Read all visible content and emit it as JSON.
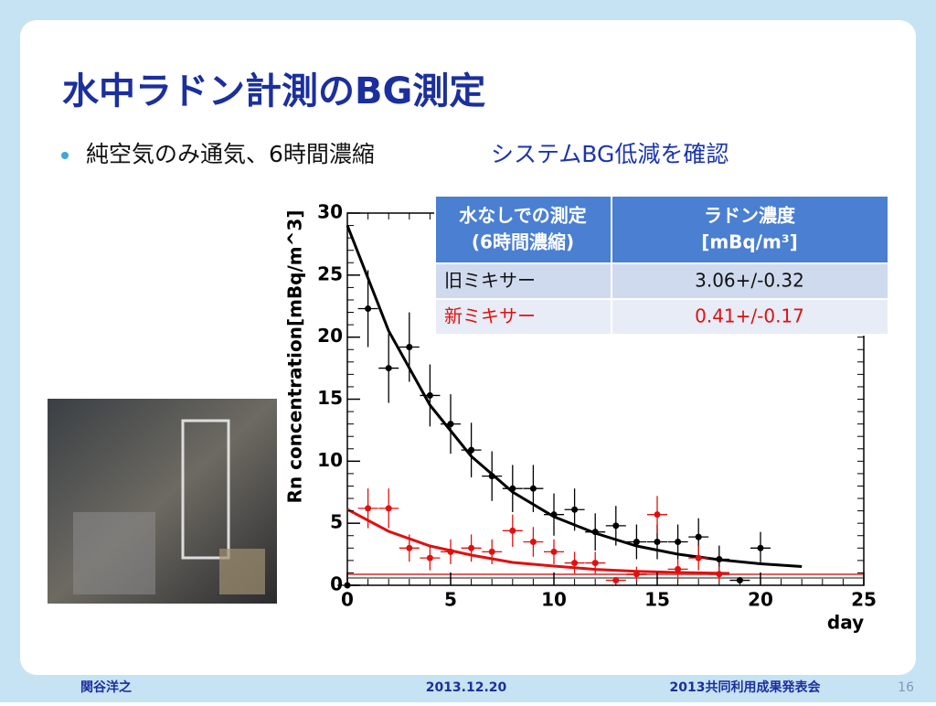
{
  "header": {
    "title": "水中ラドン計測のBG測定"
  },
  "bullet": {
    "text": "純空気のみ通気、6時間濃縮",
    "highlight": "システムBG低減を確認"
  },
  "table": {
    "header": [
      [
        "水なしでの測定",
        "(6時間濃縮)"
      ],
      [
        "ラドン濃度",
        "[mBq/m³]"
      ]
    ],
    "rows": [
      [
        "旧ミキサー",
        "3.06+/-0.32"
      ],
      [
        "新ミキサー",
        "0.41+/-0.17"
      ]
    ]
  },
  "footer": {
    "author": "関谷洋之",
    "date": "2013.12.20",
    "event": "2013共同利用成果発表会",
    "page": "16"
  },
  "chart_data": {
    "type": "scatter",
    "xlabel": "day",
    "ylabel": "Rn concentration[mBq/m^3]",
    "xlim": [
      0,
      25
    ],
    "ylim": [
      0,
      30
    ],
    "xticks": [
      0,
      5,
      10,
      15,
      20,
      25
    ],
    "yticks": [
      0,
      5,
      10,
      15,
      20,
      25,
      30
    ],
    "series": [
      {
        "color": "#000000",
        "x": [
          0,
          1,
          2,
          3,
          4,
          5,
          6,
          7,
          8,
          9,
          10,
          11,
          12,
          13,
          14,
          15,
          16,
          17,
          18,
          19,
          20
        ],
        "values": [
          0,
          22.3,
          17.5,
          19.2,
          15.3,
          13.0,
          10.9,
          8.8,
          7.8,
          7.8,
          5.7,
          6.1,
          4.3,
          4.8,
          3.5,
          3.5,
          3.5,
          3.9,
          2.1,
          0.4,
          3.0
        ],
        "errors": [
          0,
          3.1,
          2.8,
          2.8,
          2.5,
          2.4,
          2.2,
          2.0,
          1.9,
          1.9,
          1.7,
          1.7,
          1.5,
          1.6,
          1.4,
          1.4,
          1.4,
          1.5,
          1.1,
          0,
          1.3
        ]
      },
      {
        "color": "#e01010",
        "x": [
          1,
          2,
          3,
          4,
          5,
          6,
          7,
          8,
          9,
          10,
          11,
          12,
          13,
          14,
          15,
          16,
          17,
          18
        ],
        "values": [
          6.2,
          6.2,
          3.0,
          2.2,
          2.7,
          3.0,
          2.7,
          4.4,
          3.5,
          2.7,
          1.8,
          1.8,
          0.4,
          0.9,
          5.7,
          1.3,
          2.2,
          0.9
        ],
        "errors": [
          1.6,
          1.6,
          1.1,
          1.0,
          1.0,
          1.1,
          1.0,
          1.3,
          1.2,
          1.0,
          0.9,
          0.9,
          0,
          0.6,
          1.5,
          0.8,
          1.0,
          0.6
        ]
      }
    ]
  }
}
